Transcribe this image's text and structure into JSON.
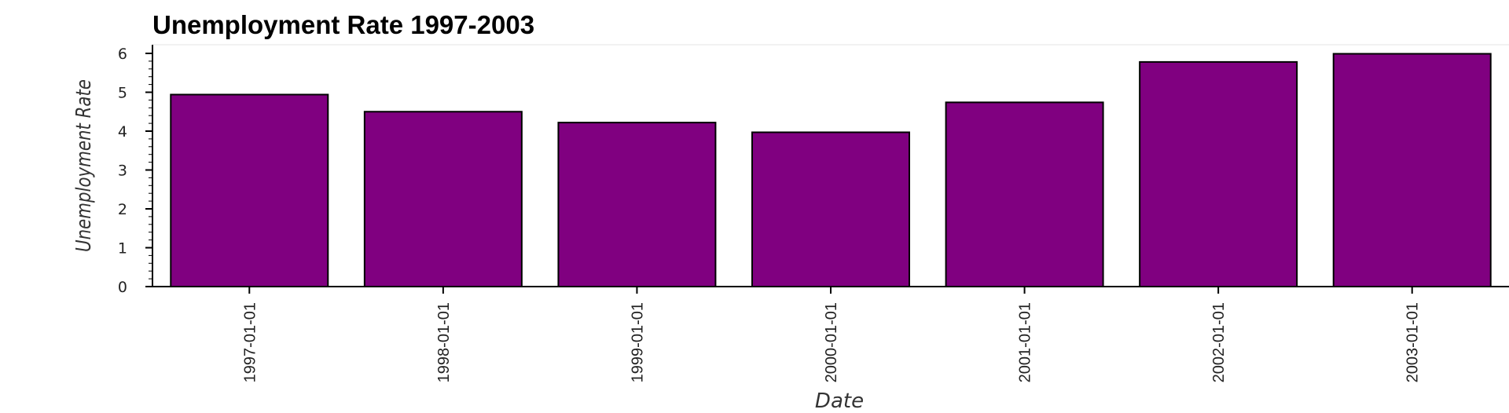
{
  "chart_data": {
    "type": "bar",
    "title": "Unemployment Rate 1997-2003",
    "xlabel": "Date",
    "ylabel": "Unemployment Rate",
    "categories": [
      "1997-01-01",
      "1998-01-01",
      "1999-01-01",
      "2000-01-01",
      "2001-01-01",
      "2002-01-01",
      "2003-01-01"
    ],
    "values": [
      4.94,
      4.5,
      4.22,
      3.97,
      4.74,
      5.78,
      5.99
    ],
    "ylim": [
      0,
      6.2
    ],
    "y_ticks": [
      0,
      1,
      2,
      3,
      4,
      5,
      6
    ],
    "grid": false,
    "legend": "none",
    "bar_color": "#800080",
    "bar_edge_color": "#000000"
  }
}
